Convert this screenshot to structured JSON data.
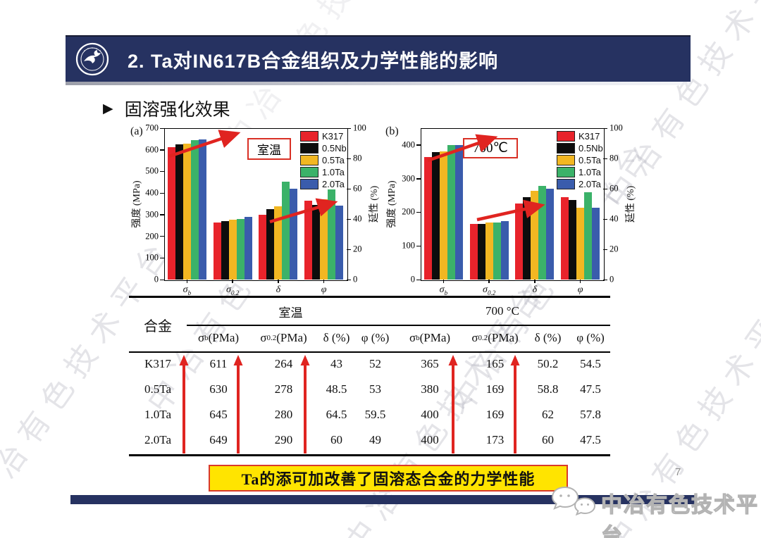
{
  "header": {
    "title": "2. Ta对IN617B合金组织及力学性能的影响"
  },
  "section": {
    "bullet": "▶",
    "heading": "固溶强化效果"
  },
  "watermark": {
    "text": "中冶有色技术平台"
  },
  "chart_data": [
    {
      "type": "bar",
      "panel_label": "(a)",
      "condition_label": "室温",
      "y_left": {
        "label": "强度 (MPa)",
        "min": 0,
        "max": 700,
        "step": 100,
        "plot_max": 700
      },
      "y_right": {
        "label": "延性 (%)",
        "min": 0,
        "max": 100,
        "step": 20
      },
      "categories": [
        {
          "sym": "σ",
          "sub": "b"
        },
        {
          "sym": "σ",
          "sub": "0.2"
        },
        {
          "sym": "δ",
          "sub": ""
        },
        {
          "sym": "φ",
          "sub": ""
        }
      ],
      "category_units": [
        "MPa",
        "MPa",
        "pct",
        "pct"
      ],
      "series": [
        {
          "name": "K317",
          "color": "#e8232b",
          "values": [
            611,
            264,
            43,
            52
          ]
        },
        {
          "name": "0.5Nb",
          "color": "#0d0d0d",
          "values": [
            625,
            271,
            46.5,
            49.5
          ]
        },
        {
          "name": "0.5Ta",
          "color": "#f2b722",
          "values": [
            630,
            278,
            48.5,
            53
          ]
        },
        {
          "name": "1.0Ta",
          "color": "#3bb269",
          "values": [
            645,
            280,
            64.5,
            59.5
          ]
        },
        {
          "name": "2.0Ta",
          "color": "#3a5cac",
          "values": [
            649,
            290,
            60,
            49
          ]
        }
      ],
      "annotations": [
        "rising-arrow-over-sigma-b",
        "rising-arrow-over-sigma-0.2"
      ]
    },
    {
      "type": "bar",
      "panel_label": "(b)",
      "condition_label": "700℃",
      "y_left": {
        "label": "强度 (MPa)",
        "min": 0,
        "max": 400,
        "step": 100,
        "plot_max": 450
      },
      "y_right": {
        "label": "延性 (%)",
        "min": 0,
        "max": 100,
        "step": 20
      },
      "categories": [
        {
          "sym": "σ",
          "sub": "b"
        },
        {
          "sym": "σ",
          "sub": "0.2"
        },
        {
          "sym": "δ",
          "sub": ""
        },
        {
          "sym": "φ",
          "sub": ""
        }
      ],
      "category_units": [
        "MPa",
        "MPa",
        "pct",
        "pct"
      ],
      "series": [
        {
          "name": "K317",
          "color": "#e8232b",
          "values": [
            365,
            165,
            50.2,
            54.5
          ]
        },
        {
          "name": "0.5Nb",
          "color": "#0d0d0d",
          "values": [
            378,
            166,
            54.5,
            52.5
          ]
        },
        {
          "name": "0.5Ta",
          "color": "#f2b722",
          "values": [
            380,
            169,
            58.8,
            47.5
          ]
        },
        {
          "name": "1.0Ta",
          "color": "#3bb269",
          "values": [
            400,
            169,
            62,
            57.8
          ]
        },
        {
          "name": "2.0Ta",
          "color": "#3a5cac",
          "values": [
            400,
            173,
            60,
            47.5
          ]
        }
      ],
      "annotations": [
        "rising-arrow-over-sigma-b",
        "rising-arrow-over-sigma-0.2"
      ]
    }
  ],
  "table": {
    "alloy_header": "合金",
    "group_headers": [
      "室温",
      "700 °C"
    ],
    "sub_headers": [
      {
        "sym": "σ",
        "sub": "b",
        "unit": "(PMa)"
      },
      {
        "sym": "σ",
        "sub": "0.2",
        "unit": "(PMa)"
      },
      {
        "sym": "δ",
        "sub": "",
        "unit": "(%)"
      },
      {
        "sym": "φ",
        "sub": "",
        "unit": "(%)"
      },
      {
        "sym": "σ",
        "sub": "b",
        "unit": "(PMa)"
      },
      {
        "sym": "σ",
        "sub": "0.2",
        "unit": "(PMa)"
      },
      {
        "sym": "δ",
        "sub": "",
        "unit": "(%)"
      },
      {
        "sym": "φ",
        "sub": "",
        "unit": "(%)"
      }
    ],
    "rows": [
      {
        "alloy": "K317",
        "values": [
          "611",
          "264",
          "43",
          "52",
          "365",
          "165",
          "50.2",
          "54.5"
        ]
      },
      {
        "alloy": "0.5Ta",
        "values": [
          "630",
          "278",
          "48.5",
          "53",
          "380",
          "169",
          "58.8",
          "47.5"
        ]
      },
      {
        "alloy": "1.0Ta",
        "values": [
          "645",
          "280",
          "64.5",
          "59.5",
          "400",
          "169",
          "62",
          "57.8"
        ]
      },
      {
        "alloy": "2.0Ta",
        "values": [
          "649",
          "290",
          "60",
          "49",
          "400",
          "173",
          "60",
          "47.5"
        ]
      }
    ],
    "arrow_annotation_color": "#e02420"
  },
  "conclusion": {
    "text": "Ta的添可加改善了固溶态合金的力学性能"
  },
  "page_number": "7",
  "footer": {
    "brand": "中冶有色技术平台"
  },
  "colors": {
    "header_navy": "#263261",
    "highlight_yellow": "#ffe400",
    "highlight_border_red": "#d9392b",
    "arrow_red": "#e02420"
  }
}
